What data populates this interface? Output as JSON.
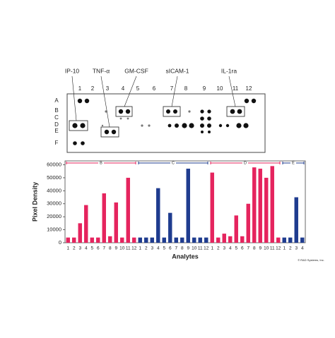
{
  "array": {
    "callouts": [
      "IP-10",
      "TNF-α",
      "GM-CSF",
      "sICAM-1",
      "IL-1ra"
    ],
    "columns": [
      "1",
      "2",
      "3",
      "4",
      "5",
      "6",
      "7",
      "8",
      "9",
      "10",
      "11",
      "12"
    ],
    "rows": [
      "A",
      "B",
      "C",
      "D",
      "E",
      "F"
    ]
  },
  "chart_data": {
    "type": "bar",
    "y_label": "Pixel Density",
    "x_label": "Analytes",
    "ylim": [
      0,
      63000
    ],
    "yticks": [
      0,
      10000,
      20000,
      30000,
      40000,
      50000,
      60000
    ],
    "series": [
      {
        "name": "B",
        "color": "#e5245e",
        "categories": [
          "1",
          "2",
          "3",
          "4",
          "5",
          "6",
          "7",
          "8",
          "9",
          "10",
          "11",
          "12"
        ],
        "values": [
          4000,
          4000,
          15000,
          29000,
          4000,
          4000,
          38000,
          5000,
          31000,
          4000,
          50000,
          4000
        ]
      },
      {
        "name": "C",
        "color": "#1f3c8f",
        "categories": [
          "1",
          "2",
          "3",
          "4",
          "5",
          "6",
          "7",
          "8",
          "9",
          "10",
          "11",
          "12"
        ],
        "values": [
          4000,
          4000,
          4000,
          42000,
          4000,
          23000,
          4000,
          4000,
          57000,
          4000,
          4000,
          4000
        ]
      },
      {
        "name": "D",
        "color": "#e5245e",
        "categories": [
          "1",
          "2",
          "3",
          "4",
          "5",
          "6",
          "7",
          "8",
          "9",
          "10",
          "11",
          "12"
        ],
        "values": [
          54000,
          4000,
          7000,
          5000,
          21000,
          5000,
          30000,
          58000,
          57000,
          50000,
          59000,
          4000
        ]
      },
      {
        "name": "E",
        "color": "#1f3c8f",
        "categories": [
          "1",
          "2",
          "3",
          "4"
        ],
        "values": [
          4000,
          4000,
          35000,
          4000
        ]
      }
    ]
  },
  "credit": "© R&D Systems, Inc."
}
